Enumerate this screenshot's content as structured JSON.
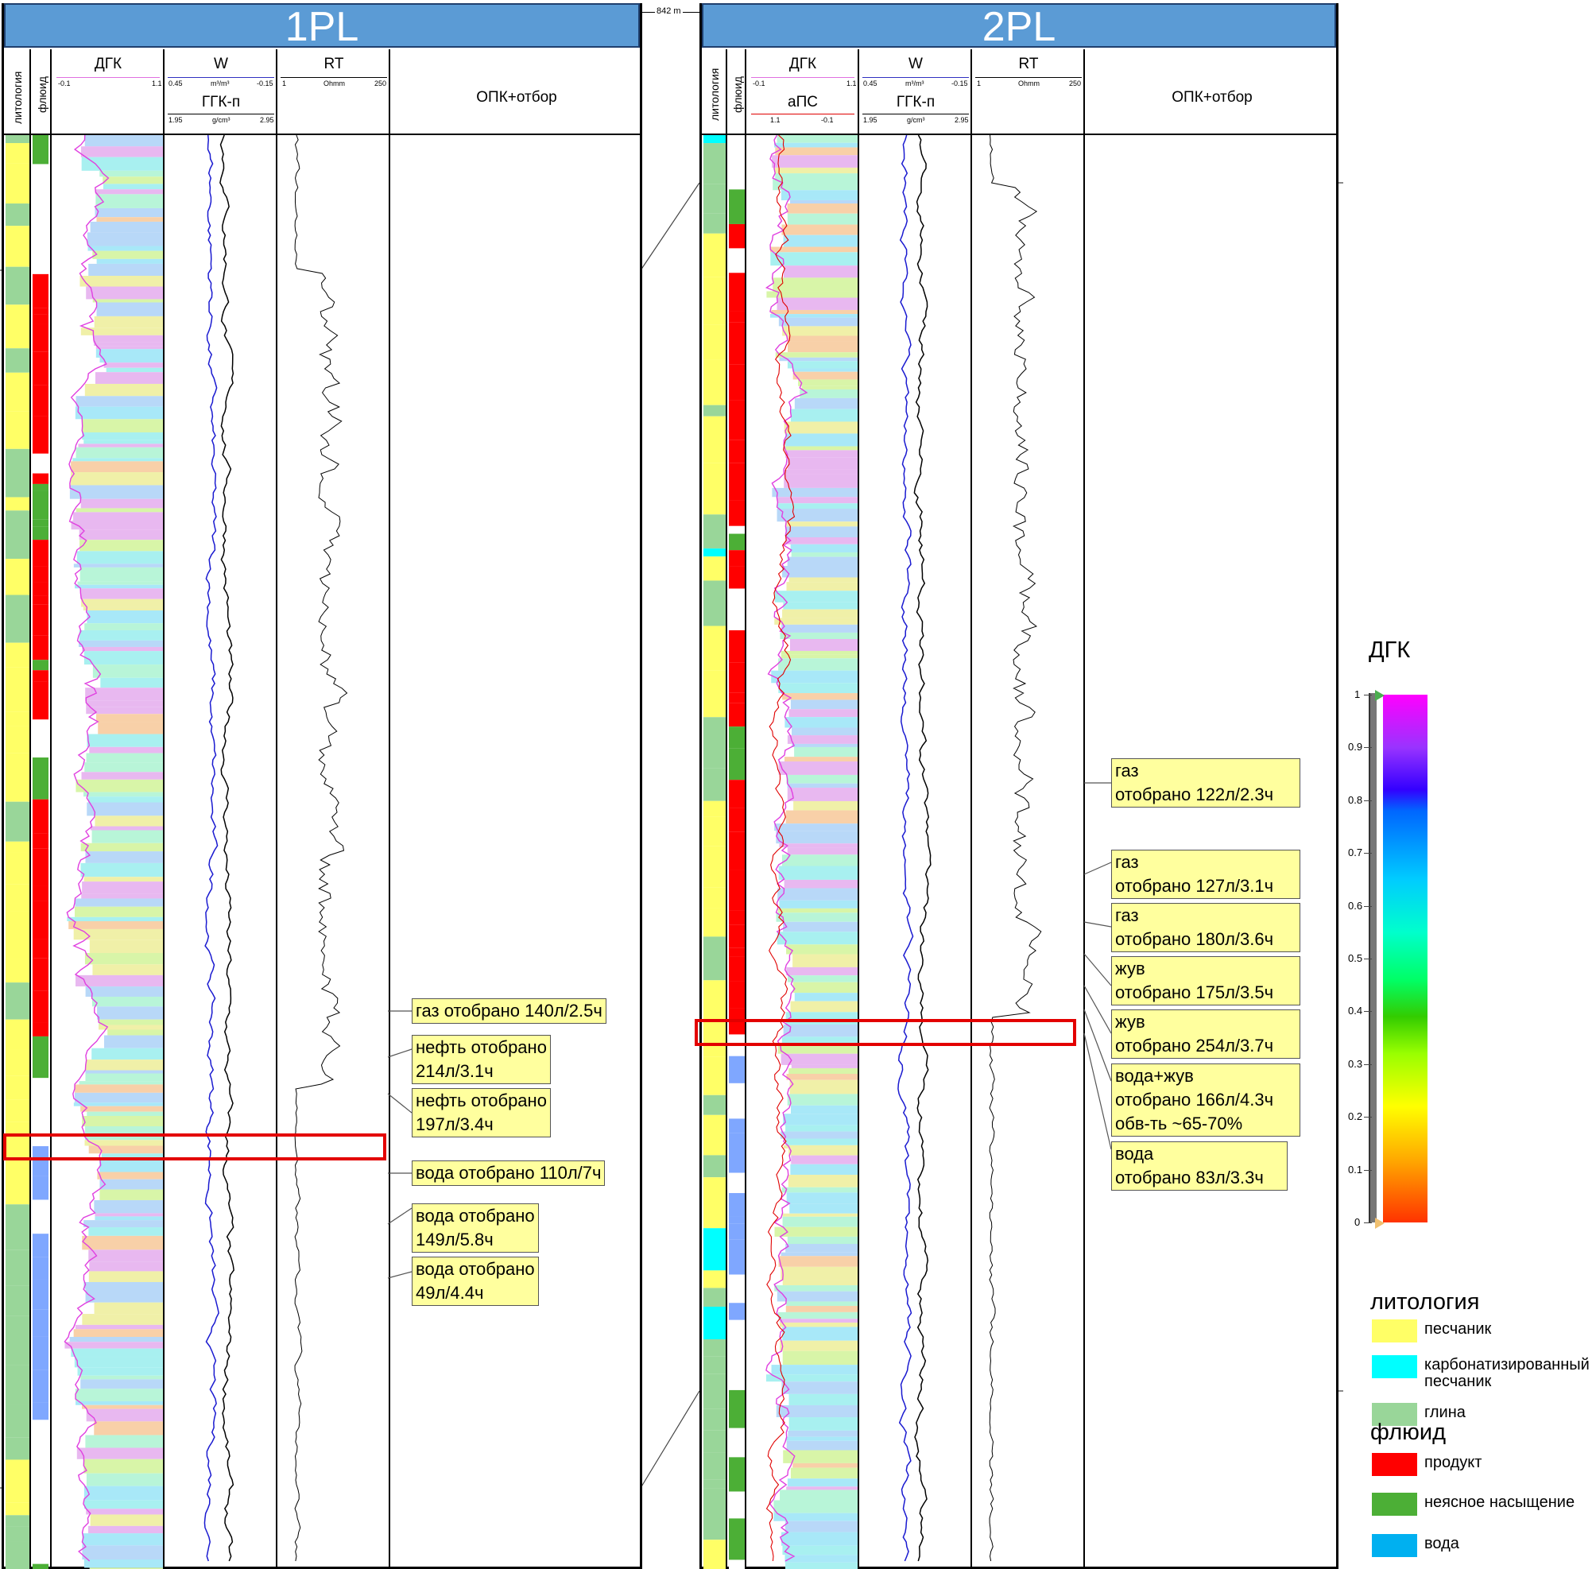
{
  "distance_label": "842 m",
  "wells": [
    {
      "name": "1PL",
      "tracks": {
        "lith": "литология",
        "fluid": "флюид",
        "dgk": {
          "name": "ДГК",
          "min": "-0.1",
          "max": "1.1"
        },
        "w": {
          "name": "W",
          "min": "0.45",
          "unit": "m³/m³",
          "max": "-0.15"
        },
        "ggk": {
          "name": "ГГК-п",
          "min": "1.95",
          "unit": "g/cm³",
          "max": "2.95"
        },
        "rt": {
          "name": "RT",
          "min": "1",
          "unit": "Ohmm",
          "max": "250"
        },
        "opk": "ОПК+отбор"
      },
      "annotations": [
        {
          "lines": [
            "газ отобрано 140л/2.5ч"
          ]
        },
        {
          "lines": [
            "нефть отобрано",
            "214л/3.1ч"
          ]
        },
        {
          "lines": [
            "нефть отобрано",
            "197л/3.4ч"
          ]
        },
        {
          "lines": [
            "вода отобрано 110л/7ч"
          ]
        },
        {
          "lines": [
            "вода отобрано",
            "149л/5.8ч"
          ]
        },
        {
          "lines": [
            "вода отобрано",
            "49л/4.4ч"
          ]
        }
      ]
    },
    {
      "name": "2PL",
      "tracks": {
        "lith": "литология",
        "fluid": "флюид",
        "dgk": {
          "name": "ДГК",
          "min": "-0.1",
          "max": "1.1"
        },
        "aps": {
          "name": "аПС",
          "min": "1.1",
          "max": "-0.1"
        },
        "w": {
          "name": "W",
          "min": "0.45",
          "unit": "m³/m³",
          "max": "-0.15"
        },
        "ggk": {
          "name": "ГГК-п",
          "min": "1.95",
          "unit": "g/cm³",
          "max": "2.95"
        },
        "rt": {
          "name": "RT",
          "min": "1",
          "unit": "Ohmm",
          "max": "250"
        },
        "opk": "ОПК+отбор"
      },
      "annotations": [
        {
          "lines": [
            "газ",
            "отобрано 122л/2.3ч"
          ]
        },
        {
          "lines": [
            "газ",
            "отобрано 127л/3.1ч"
          ]
        },
        {
          "lines": [
            "газ",
            "отобрано 180л/3.6ч"
          ]
        },
        {
          "lines": [
            "жув",
            "отобрано 175л/3.5ч"
          ]
        },
        {
          "lines": [
            "жув",
            "отобрано 254л/3.7ч"
          ]
        },
        {
          "lines": [
            "вода+жув",
            "отобрано 166л/4.3ч",
            "обв-ть ~65-70%"
          ]
        },
        {
          "lines": [
            "вода",
            "отобрано 83л/3.3ч"
          ]
        }
      ]
    }
  ],
  "colorbar": {
    "title": "ДГК",
    "ticks": [
      "1",
      "0.9",
      "0.8",
      "0.7",
      "0.6",
      "0.5",
      "0.4",
      "0.3",
      "0.2",
      "0.1",
      "0"
    ]
  },
  "legend": {
    "lithology_title": "литология",
    "lithology": [
      {
        "label": "песчаник",
        "color": "#ffff66"
      },
      {
        "label": "карбонатизированный песчаник",
        "color": "#00ffff"
      },
      {
        "label": "глина",
        "color": "#99d699"
      }
    ],
    "fluid_title": "флюид",
    "fluid": [
      {
        "label": "продукт",
        "color": "#ff0000"
      },
      {
        "label": "неясное насыщение",
        "color": "#4caf36"
      },
      {
        "label": "вода",
        "color": "#00b0f0"
      }
    ]
  }
}
